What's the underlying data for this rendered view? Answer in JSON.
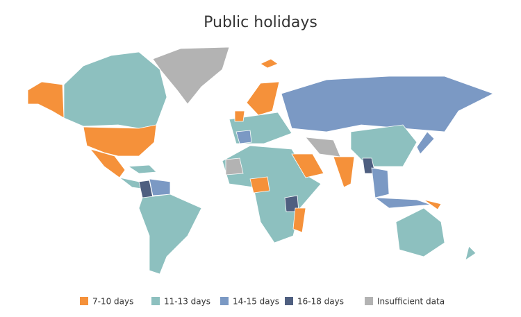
{
  "title": "Public holidays",
  "legend": [
    {
      "label": "7-10 days",
      "color": "#f5913a"
    },
    {
      "label": "11-13 days",
      "color": "#8dc0bf"
    },
    {
      "label": "14-15 days",
      "color": "#7b99c4"
    },
    {
      "label": "16-18 days",
      "color": "#4f5f80"
    },
    {
      "label": "Insufficient data",
      "color": "#b3b3b3"
    }
  ]
}
